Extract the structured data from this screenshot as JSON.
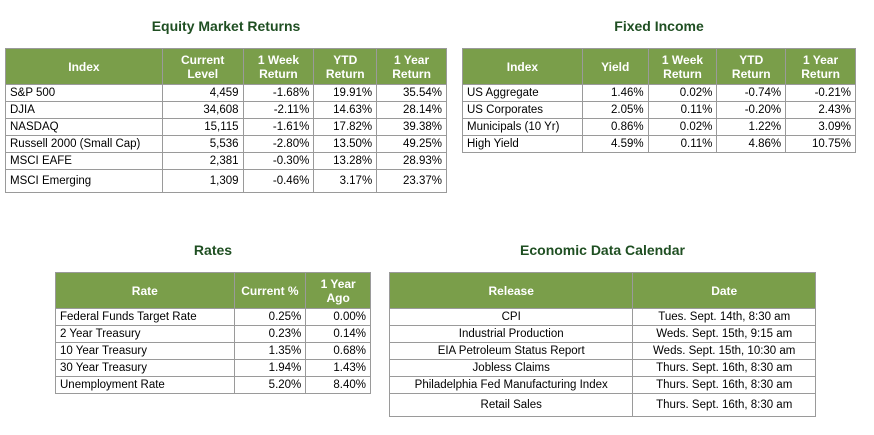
{
  "equity": {
    "title": "Equity Market Returns",
    "headers": [
      "Index",
      "Current Level",
      "1 Week Return",
      "YTD Return",
      "1 Year Return"
    ],
    "rows": [
      [
        "S&P 500",
        "4,459",
        "-1.68%",
        "19.91%",
        "35.54%"
      ],
      [
        "DJIA",
        "34,608",
        "-2.11%",
        "14.63%",
        "28.14%"
      ],
      [
        "NASDAQ",
        "15,115",
        "-1.61%",
        "17.82%",
        "39.38%"
      ],
      [
        "Russell 2000 (Small Cap)",
        "5,536",
        "-2.80%",
        "13.50%",
        "49.25%"
      ],
      [
        "MSCI EAFE",
        "2,381",
        "-0.30%",
        "13.28%",
        "28.93%"
      ],
      [
        "MSCI Emerging",
        "1,309",
        "-0.46%",
        "3.17%",
        "23.37%"
      ]
    ]
  },
  "fixed_income": {
    "title": "Fixed Income",
    "headers": [
      "Index",
      "Yield",
      "1 Week Return",
      "YTD Return",
      "1 Year Return"
    ],
    "rows": [
      [
        "US Aggregate",
        "1.46%",
        "0.02%",
        "-0.74%",
        "-0.21%"
      ],
      [
        "US Corporates",
        "2.05%",
        "0.11%",
        "-0.20%",
        "2.43%"
      ],
      [
        "Municipals (10 Yr)",
        "0.86%",
        "0.02%",
        "1.22%",
        "3.09%"
      ],
      [
        "High Yield",
        "4.59%",
        "0.11%",
        "4.86%",
        "10.75%"
      ]
    ]
  },
  "rates": {
    "title": "Rates",
    "headers": [
      "Rate",
      "Current %",
      "1 Year Ago"
    ],
    "rows": [
      [
        "Federal Funds Target Rate",
        "0.25%",
        "0.00%"
      ],
      [
        "2 Year Treasury",
        "0.23%",
        "0.14%"
      ],
      [
        "10 Year Treasury",
        "1.35%",
        "0.68%"
      ],
      [
        "30 Year Treasury",
        "1.94%",
        "1.43%"
      ],
      [
        "Unemployment Rate",
        "5.20%",
        "8.40%"
      ]
    ]
  },
  "calendar": {
    "title": "Economic Data Calendar",
    "headers": [
      "Release",
      "Date"
    ],
    "rows": [
      [
        "CPI",
        "Tues. Sept. 14th, 8:30 am"
      ],
      [
        "Industrial Production",
        "Weds. Sept. 15th, 9:15 am"
      ],
      [
        "EIA Petroleum Status Report",
        "Weds. Sept. 15th, 10:30 am"
      ],
      [
        "Jobless Claims",
        "Thurs. Sept. 16th, 8:30 am"
      ],
      [
        "Philadelphia Fed Manufacturing Index",
        "Thurs. Sept. 16th, 8:30 am"
      ],
      [
        "Retail Sales",
        "Thurs. Sept. 16th, 8:30 am"
      ]
    ]
  },
  "colors": {
    "header_bg": "#7a9e4a",
    "title_text": "#1f4f22",
    "border": "#9a9a9a"
  }
}
